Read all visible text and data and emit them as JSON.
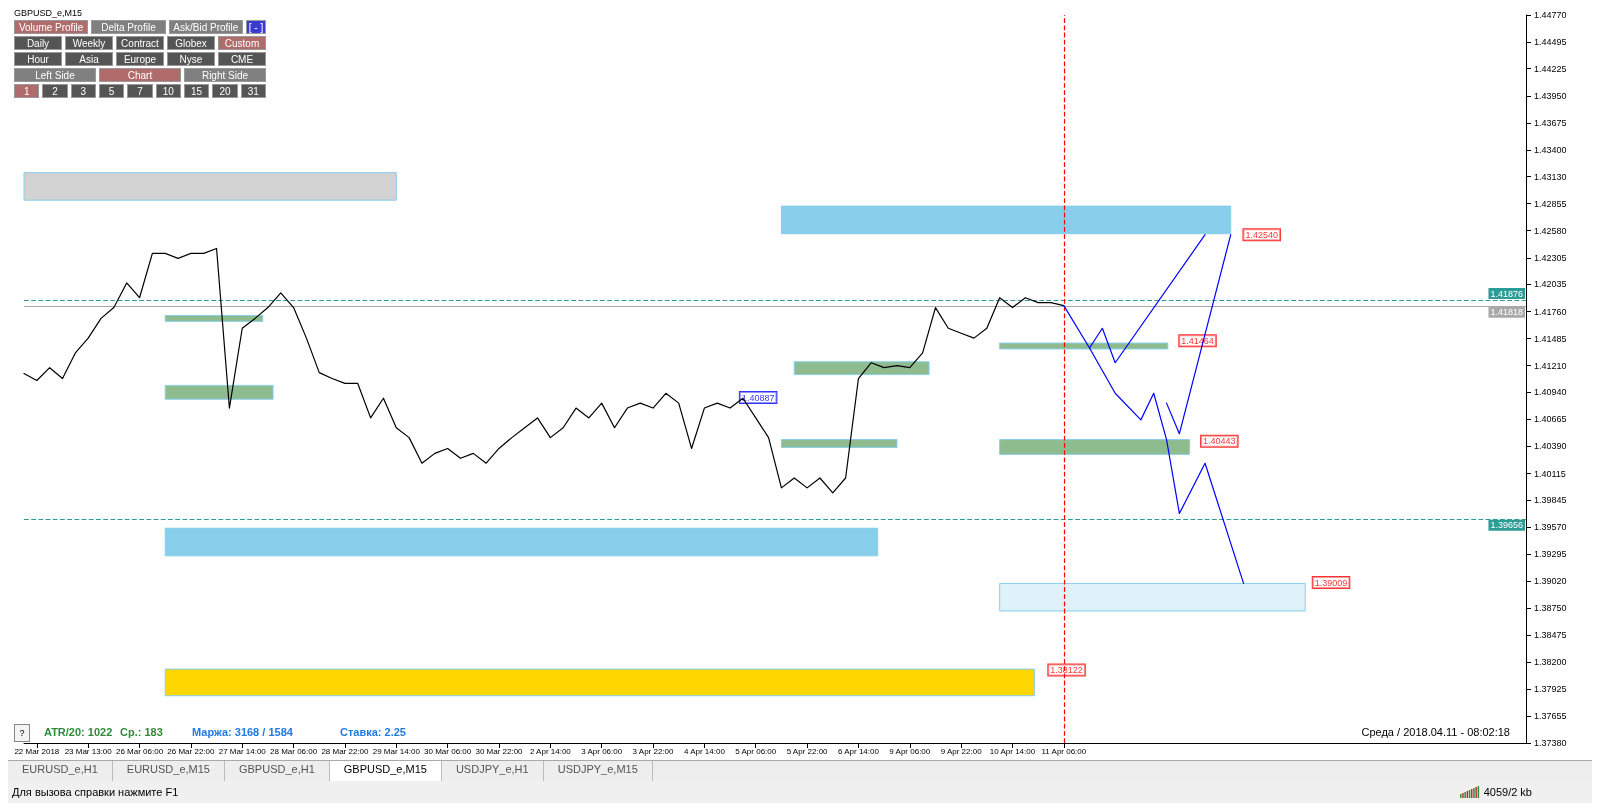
{
  "chart_data": {
    "type": "line",
    "title": "GBPUSD_e,M15",
    "categories": [
      null,
      "22 Mar 2018",
      null,
      null,
      null,
      "23 Mar 13:00",
      null,
      null,
      null,
      "26 Mar 06:00",
      null,
      null,
      null,
      "26 Mar 22:00",
      null,
      null,
      null,
      "27 Mar 14:00",
      null,
      null,
      null,
      "28 Mar 06:00",
      null,
      null,
      null,
      "28 Mar 22:00",
      null,
      null,
      null,
      "29 Mar 14:00",
      null,
      null,
      null,
      "30 Mar 06:00",
      null,
      null,
      null,
      "30 Mar 22:00",
      null,
      null,
      null,
      "2 Apr 14:00",
      null,
      null,
      null,
      "3 Apr 06:00",
      null,
      null,
      null,
      "3 Apr 22:00",
      null,
      null,
      null,
      "4 Apr 14:00",
      null,
      null,
      null,
      "5 Apr 06:00",
      null,
      null,
      null,
      "5 Apr 22:00",
      null,
      null,
      null,
      "6 Apr 14:00",
      null,
      null,
      null,
      "9 Apr 06:00",
      null,
      null,
      null,
      "9 Apr 22:00",
      null,
      null,
      null,
      "10 Apr 14:00",
      null,
      null,
      null,
      "11 Apr 06:00",
      null,
      null,
      null,
      null,
      null,
      null,
      null,
      null,
      null,
      null,
      null,
      null,
      null,
      null,
      null,
      null,
      null,
      null,
      null,
      null,
      null,
      null,
      null,
      null,
      null,
      null,
      null,
      null,
      null,
      null,
      null,
      null,
      null,
      null,
      null,
      null
    ],
    "series": [
      {
        "color": "#000000",
        "values": [
          1.4113,
          1.4106,
          1.4119,
          1.4108,
          1.4134,
          1.4149,
          1.4169,
          1.418,
          1.4205,
          1.419,
          1.4235,
          1.4235,
          1.423,
          1.4235,
          1.4235,
          1.424,
          1.4078,
          1.4159,
          1.4169,
          1.418,
          1.4195,
          1.418,
          1.4149,
          1.4114,
          1.4108,
          1.4103,
          1.4103,
          1.4068,
          1.4088,
          1.4058,
          1.4048,
          1.4022,
          1.4032,
          1.4037,
          1.4027,
          1.4032,
          1.4022,
          1.4037,
          1.4048,
          1.4058,
          1.4068,
          1.4048,
          1.4058,
          1.4078,
          1.4068,
          1.4083,
          1.4058,
          1.4078,
          1.4083,
          1.4078,
          1.4093,
          1.4083,
          1.4037,
          1.4078,
          1.4083,
          1.4078,
          1.4088,
          1.4068,
          1.4048,
          1.3997,
          1.4007,
          1.3997,
          1.4007,
          1.3992,
          1.4007,
          1.4108,
          1.4124,
          1.4119,
          1.4121,
          1.4119,
          1.4134,
          1.418,
          1.4159,
          1.4154,
          1.4149,
          1.4159,
          1.419,
          1.418,
          1.419,
          1.4185,
          1.4185,
          1.4182,
          null,
          null,
          null,
          null,
          null,
          null,
          null,
          null,
          null,
          null,
          null,
          null,
          null,
          null,
          null,
          null,
          null,
          null,
          null,
          null,
          null,
          null,
          null,
          null,
          null,
          null,
          null,
          null,
          null,
          null,
          null,
          null,
          null,
          null,
          null,
          null
        ]
      },
      {
        "color": "#0000ff",
        "values": [
          null,
          null,
          null,
          null,
          null,
          null,
          null,
          null,
          null,
          null,
          null,
          null,
          null,
          null,
          null,
          null,
          null,
          null,
          null,
          null,
          null,
          null,
          null,
          null,
          null,
          null,
          null,
          null,
          null,
          null,
          null,
          null,
          null,
          null,
          null,
          null,
          null,
          null,
          null,
          null,
          null,
          null,
          null,
          null,
          null,
          null,
          null,
          null,
          null,
          null,
          null,
          null,
          null,
          null,
          null,
          null,
          null,
          null,
          null,
          null,
          null,
          null,
          null,
          null,
          null,
          null,
          null,
          null,
          null,
          null,
          null,
          null,
          null,
          null,
          null,
          null,
          null,
          null,
          null,
          null,
          null,
          1.4182,
          null,
          1.4139,
          null,
          1.4093,
          null,
          1.4066,
          1.4093,
          1.4046,
          1.3971,
          null,
          1.4022,
          null,
          null,
          1.39,
          null,
          null,
          null,
          null,
          null,
          null,
          null,
          null,
          null,
          null,
          null,
          null,
          null,
          null,
          null,
          null,
          null,
          null,
          null,
          null,
          null,
          null
        ]
      },
      {
        "color": "#0000ff",
        "values": [
          null,
          null,
          null,
          null,
          null,
          null,
          null,
          null,
          null,
          null,
          null,
          null,
          null,
          null,
          null,
          null,
          null,
          null,
          null,
          null,
          null,
          null,
          null,
          null,
          null,
          null,
          null,
          null,
          null,
          null,
          null,
          null,
          null,
          null,
          null,
          null,
          null,
          null,
          null,
          null,
          null,
          null,
          null,
          null,
          null,
          null,
          null,
          null,
          null,
          null,
          null,
          null,
          null,
          null,
          null,
          null,
          null,
          null,
          null,
          null,
          null,
          null,
          null,
          null,
          null,
          null,
          null,
          null,
          null,
          null,
          null,
          null,
          null,
          null,
          null,
          null,
          null,
          null,
          null,
          null,
          null,
          null,
          null,
          1.4139,
          1.4159,
          1.4124,
          null,
          null,
          null,
          null,
          null,
          null,
          1.4254,
          null,
          null,
          null,
          null,
          null,
          null,
          null,
          null,
          null,
          null,
          null,
          null,
          null,
          null,
          null,
          null,
          null,
          null,
          null,
          null,
          null,
          null,
          null,
          null,
          null
        ]
      },
      {
        "color": "#0000ff",
        "values": [
          null,
          null,
          null,
          null,
          null,
          null,
          null,
          null,
          null,
          null,
          null,
          null,
          null,
          null,
          null,
          null,
          null,
          null,
          null,
          null,
          null,
          null,
          null,
          null,
          null,
          null,
          null,
          null,
          null,
          null,
          null,
          null,
          null,
          null,
          null,
          null,
          null,
          null,
          null,
          null,
          null,
          null,
          null,
          null,
          null,
          null,
          null,
          null,
          null,
          null,
          null,
          null,
          null,
          null,
          null,
          null,
          null,
          null,
          null,
          null,
          null,
          null,
          null,
          null,
          null,
          null,
          null,
          null,
          null,
          null,
          null,
          null,
          null,
          null,
          null,
          null,
          null,
          null,
          null,
          null,
          null,
          null,
          null,
          null,
          null,
          null,
          null,
          null,
          null,
          1.4083,
          1.4052,
          null,
          null,
          null,
          1.4254,
          null,
          null,
          null,
          null,
          null,
          null,
          null,
          null,
          null,
          null,
          null,
          null,
          null,
          null,
          null,
          null,
          null,
          null,
          null,
          null,
          null,
          null,
          null
        ]
      }
    ],
    "ylim": [
      1.3738,
      1.4477
    ],
    "yticks": [
      {
        "value": 1.4477,
        "label": "1.44770"
      },
      {
        "value": 1.44495,
        "label": "1.44495"
      },
      {
        "value": 1.44225,
        "label": "1.44225"
      },
      {
        "value": 1.4395,
        "label": "1.43950"
      },
      {
        "value": 1.43675,
        "label": "1.43675"
      },
      {
        "value": 1.434,
        "label": "1.43400"
      },
      {
        "value": 1.4313,
        "label": "1.43130"
      },
      {
        "value": 1.42855,
        "label": "1.42855"
      },
      {
        "value": 1.4258,
        "label": "1.42580"
      },
      {
        "value": 1.42305,
        "label": "1.42305"
      },
      {
        "value": 1.42035,
        "label": "1.42035"
      },
      {
        "value": 1.4176,
        "label": "1.41760"
      },
      {
        "value": 1.41485,
        "label": "1.41485"
      },
      {
        "value": 1.4121,
        "label": "1.41210"
      },
      {
        "value": 1.4094,
        "label": "1.40940"
      },
      {
        "value": 1.40665,
        "label": "1.40665"
      },
      {
        "value": 1.4039,
        "label": "1.40390"
      },
      {
        "value": 1.40115,
        "label": "1.40115"
      },
      {
        "value": 1.39845,
        "label": "1.39845"
      },
      {
        "value": 1.3957,
        "label": "1.39570"
      },
      {
        "value": 1.39295,
        "label": "1.39295"
      },
      {
        "value": 1.3902,
        "label": "1.39020"
      },
      {
        "value": 1.3875,
        "label": "1.38750"
      },
      {
        "value": 1.38475,
        "label": "1.38475"
      },
      {
        "value": 1.382,
        "label": "1.38200"
      },
      {
        "value": 1.37925,
        "label": "1.37925"
      },
      {
        "value": 1.37655,
        "label": "1.37655"
      },
      {
        "value": 1.3738,
        "label": "1.37380"
      }
    ],
    "ref_lines": [
      {
        "axis": "y",
        "value": 1.41876,
        "label": "1.41876",
        "color": "#2e9c96",
        "line_style": "dashed"
      },
      {
        "axis": "y",
        "value": 1.41818,
        "label": "1.41818",
        "color": "#a9a9a9",
        "line_style": "solid"
      },
      {
        "axis": "y",
        "value": 1.39656,
        "label": "1.39656",
        "color": "#2e9c96",
        "line_style": "dashed"
      },
      {
        "axis": "x",
        "value": "11 Apr 06:00",
        "color": "#ff0000",
        "line_style": "dashed"
      }
    ],
    "bands": [
      {
        "axis": "y",
        "from": 1.4289,
        "to": 1.4317,
        "color": "#d3d3d3"
      },
      {
        "axis": "y",
        "from": 1.4255,
        "to": 1.4283,
        "color": "#87ceeb"
      },
      {
        "axis": "y",
        "from": 1.4166,
        "to": 1.4172,
        "color": "#8fbc8f"
      },
      {
        "axis": "y",
        "from": 1.4087,
        "to": 1.4101,
        "color": "#8fbc8f"
      },
      {
        "axis": "y",
        "from": 1.4112,
        "to": 1.4125,
        "color": "#8fbc8f"
      },
      {
        "axis": "y",
        "from": 1.4038,
        "to": 1.4046,
        "color": "#8fbc8f"
      },
      {
        "axis": "y",
        "from": 1.4138,
        "to": 1.4144,
        "color": "#8fbc8f"
      },
      {
        "axis": "y",
        "from": 1.4031,
        "to": 1.4046,
        "color": "#8fbc8f"
      },
      {
        "axis": "y",
        "from": 1.3928,
        "to": 1.3956,
        "color": "#87ceeb"
      },
      {
        "axis": "y",
        "from": 1.3872,
        "to": 1.39,
        "color": "#dff1f9"
      },
      {
        "axis": "y",
        "from": 1.3786,
        "to": 1.3813,
        "color": "#ffd700"
      }
    ],
    "annotations": [
      "Volume Profile",
      "Delta Profile",
      "Ask/Bid Profile",
      "[ - ]",
      "Daily",
      "Weekly",
      "Contract",
      "Globex",
      "Custom",
      "Hour",
      "Asia",
      "Europe",
      "Nyse",
      "CME",
      "Left Side",
      "Chart",
      "Right Side",
      "1",
      "2",
      "3",
      "5",
      "7",
      "10",
      "15",
      "20",
      "31",
      "?",
      "ATR/20: 1022",
      "Ср.: 183",
      "Маржа: 3168 / 1584",
      "Ставка: 2.25",
      "Среда / 2018.04.11 - 08:02:18",
      "EURUSD_e,H1",
      "EURUSD_e,M15",
      "GBPUSD_e,H1",
      "GBPUSD_e,M15",
      "USDJPY_e,H1",
      "USDJPY_e,M15",
      "Для вызова справки нажмите F1",
      "4059/2 kb",
      {
        "text": "1.42540",
        "y": 1.4254
      },
      {
        "text": "1.41464",
        "y": 1.41464
      },
      {
        "text": "1.40443",
        "y": 1.40443
      },
      {
        "text": "1.39009",
        "y": 1.39009
      },
      {
        "text": "1.38122",
        "y": 1.38122
      },
      {
        "text": "1.40887",
        "y": 1.40887
      }
    ],
    "grid": false
  }
}
